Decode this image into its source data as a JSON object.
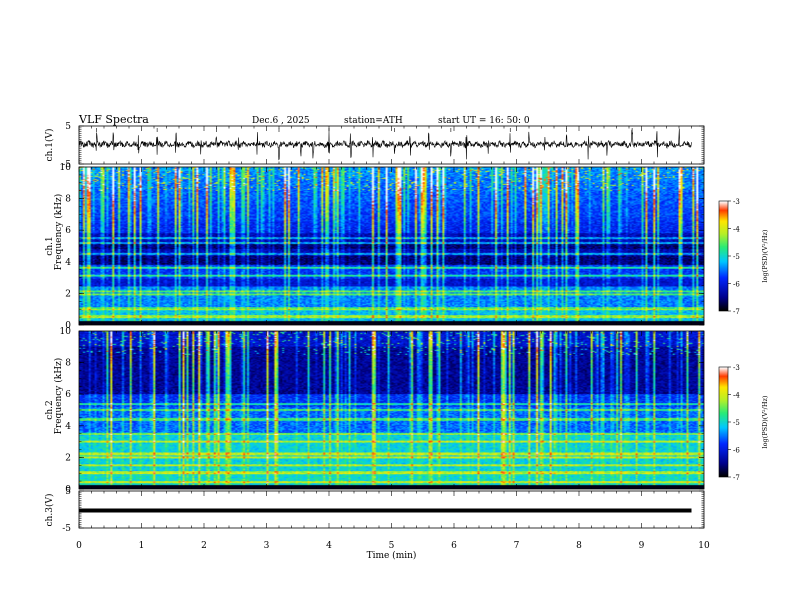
{
  "header": {
    "title": "VLF  Spectra",
    "date": "Dec.6  , 2025",
    "station": "station=ATH",
    "start": "start  UT  =   16: 50: 0"
  },
  "chart_data": [
    {
      "id": "ch1-waveform",
      "type": "line",
      "ylabel": "ch.1(V)",
      "ylim": [
        -5,
        5
      ],
      "yticks": [
        "5",
        "-5"
      ],
      "xlim": [
        0,
        10
      ],
      "baseline_v": 0.2,
      "spike_times_min": [
        0.28,
        0.55,
        0.95,
        1.25,
        1.55,
        1.95,
        2.2,
        2.55,
        2.85,
        3.2,
        3.55,
        3.75,
        4.0,
        4.35,
        4.7,
        5.05,
        5.3,
        5.6,
        5.95,
        6.2,
        6.55,
        6.9,
        7.2,
        7.45,
        7.8,
        8.15,
        8.45,
        8.85,
        9.25,
        9.6
      ]
    },
    {
      "id": "ch1-spectrogram",
      "type": "heatmap",
      "ylabel": "ch.1\nFrequency  (kHz)",
      "ylabel_line1": "ch.1",
      "ylabel_line2": "Frequency  (kHz)",
      "ylim": [
        0,
        10
      ],
      "yticks": [
        "0",
        "2",
        "4",
        "6",
        "8",
        "10"
      ],
      "xlim": [
        0,
        10
      ],
      "colorbar": {
        "label": "log(PSD)(V²/Hz)",
        "range": [
          -7,
          -3
        ],
        "ticks": [
          "-3",
          "-4",
          "-5",
          "-6",
          "-7"
        ]
      },
      "bright_bands_khz": [
        0.5,
        1.0,
        1.9,
        2.1,
        3.1,
        3.6,
        4.5,
        5.2,
        5.5
      ],
      "dark_bands_khz": [
        [
          3.8,
          4.4
        ],
        [
          4.8,
          5.1
        ],
        [
          2.4,
          2.9
        ]
      ]
    },
    {
      "id": "ch2-spectrogram",
      "type": "heatmap",
      "ylabel": "ch.2\nFrequency  (kHz)",
      "ylabel_line1": "ch.2",
      "ylabel_line2": "Frequency  (kHz)",
      "ylim": [
        0,
        10
      ],
      "yticks": [
        "0",
        "2",
        "4",
        "6",
        "8",
        "10"
      ],
      "xlim": [
        0,
        10
      ],
      "colorbar": {
        "label": "log(PSD)(V²/Hz)",
        "range": [
          -7,
          -3
        ],
        "ticks": [
          "-3",
          "-4",
          "-5",
          "-6",
          "-7"
        ]
      },
      "bright_bands_khz": [
        0.4,
        1.0,
        1.5,
        2.0,
        2.2,
        3.0,
        3.5,
        4.4,
        5.0,
        5.4
      ],
      "dark_bands_khz": [
        [
          6.0,
          9.0
        ]
      ]
    },
    {
      "id": "ch3-waveform",
      "type": "line",
      "ylabel": "ch.3(V)",
      "ylim": [
        -5,
        5
      ],
      "yticks": [
        "5",
        "-5"
      ],
      "xlim": [
        0,
        10
      ],
      "baseline_v": 0.0,
      "xlabel": "Time  (min)",
      "xticks": [
        "0",
        "1",
        "2",
        "3",
        "4",
        "5",
        "6",
        "7",
        "8",
        "9",
        "10"
      ]
    }
  ]
}
